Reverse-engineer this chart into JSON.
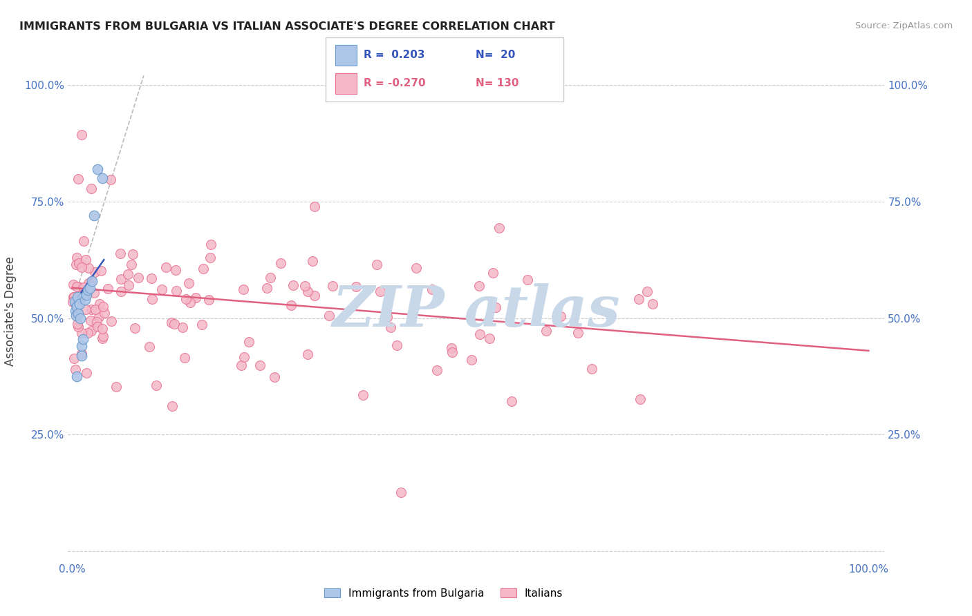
{
  "title": "IMMIGRANTS FROM BULGARIA VS ITALIAN ASSOCIATE'S DEGREE CORRELATION CHART",
  "source": "Source: ZipAtlas.com",
  "ylabel": "Associate's Degree",
  "title_color": "#222222",
  "source_color": "#999999",
  "axis_color": "#4472c4",
  "blue_dot_color": "#aec6e8",
  "blue_dot_edge": "#6699cc",
  "pink_dot_color": "#f4b8c8",
  "pink_dot_edge": "#e87090",
  "blue_line_color": "#3355bb",
  "pink_line_color": "#e06080",
  "dashed_line_color": "#bbbbbb",
  "grid_color": "#cccccc",
  "watermark_color": "#c8d8e8",
  "legend_blue_label": "Immigrants from Bulgaria",
  "legend_pink_label": "Italians",
  "blue_x": [
    0.003,
    0.004,
    0.005,
    0.006,
    0.007,
    0.008,
    0.009,
    0.01,
    0.012,
    0.014,
    0.016,
    0.018,
    0.02,
    0.022,
    0.025,
    0.028,
    0.032,
    0.038,
    0.012,
    0.006
  ],
  "blue_y": [
    0.535,
    0.515,
    0.505,
    0.525,
    0.545,
    0.51,
    0.53,
    0.5,
    0.44,
    0.455,
    0.54,
    0.55,
    0.56,
    0.565,
    0.58,
    0.72,
    0.82,
    0.8,
    0.42,
    0.375
  ],
  "pink_line_x0": 0.0,
  "pink_line_y0": 0.565,
  "pink_line_x1": 1.0,
  "pink_line_y1": 0.43,
  "blue_line_x0": 0.0,
  "blue_line_y0": 0.527,
  "blue_line_x1": 0.04,
  "blue_line_y1": 0.625,
  "dash_line_x0": 0.0,
  "dash_line_y0": 0.527,
  "dash_line_x1": 0.09,
  "dash_line_y1": 1.02,
  "xlim_lo": -0.005,
  "xlim_hi": 1.02,
  "ylim_lo": -0.02,
  "ylim_hi": 1.05
}
